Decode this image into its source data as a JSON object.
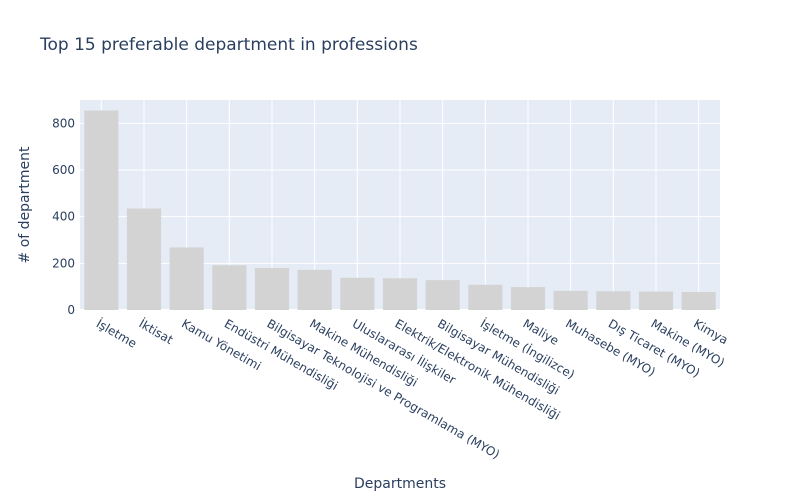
{
  "chart_data": {
    "type": "bar",
    "title": "Top 15 preferable department in professions",
    "xlabel": "Departments",
    "ylabel": "# of department",
    "ylim": [
      0,
      900
    ],
    "yticks": [
      0,
      200,
      400,
      600,
      800
    ],
    "grid": true,
    "bar_color": "#d3d3d3",
    "plot_bg": "#e5ecf6",
    "categories": [
      "İşletme",
      "İktisat",
      "Kamu Yönetimi",
      "Endüstri Mühendisliği",
      "Bilgisayar Teknolojisi ve Programlama (MYO)",
      "Makine Mühendisliği",
      "Uluslararası İlişkiler",
      "Elektrik/Elektronik Mühendisliği",
      "Bilgisayar Mühendisliği",
      "İşletme (İngilizce)",
      "Maliye",
      "Muhasebe (MYO)",
      "Dış Ticaret (MYO)",
      "Makine (MYO)",
      "Kimya"
    ],
    "values": [
      855,
      435,
      268,
      192,
      180,
      172,
      138,
      136,
      128,
      108,
      98,
      82,
      80,
      79,
      77
    ]
  }
}
